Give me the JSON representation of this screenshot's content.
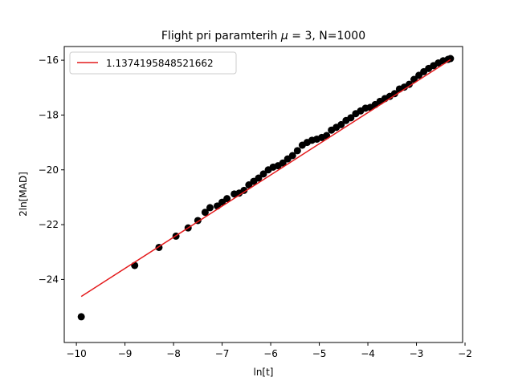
{
  "chart_data": {
    "type": "scatter",
    "title": "Flight pri paramterih μ = 3, N=1000",
    "title_prefix": "Flight pri paramterih ",
    "title_mu": "μ",
    "title_suffix": " = 3, N=1000",
    "xlabel": "ln[t]",
    "ylabel": "2ln[MAD]",
    "xlim": [
      -10.25,
      -2.05
    ],
    "ylim": [
      -26.3,
      -15.5
    ],
    "xticks": [
      -10,
      -9,
      -8,
      -7,
      -6,
      -5,
      -4,
      -3,
      -2
    ],
    "yticks": [
      -24,
      -22,
      -20,
      -18,
      -16
    ],
    "grid": false,
    "legend": {
      "placement": "top-left",
      "label": "1.1374195848521662"
    },
    "fit_line": {
      "color": "#e41a1c",
      "x": [
        -9.9,
        -2.3
      ],
      "y": [
        -24.62,
        -15.98
      ]
    },
    "scatter_color": "#000000",
    "series": [
      {
        "values": [
          [
            -9.9,
            -25.36
          ],
          [
            -8.8,
            -23.49
          ],
          [
            -8.3,
            -22.83
          ],
          [
            -7.95,
            -22.42
          ],
          [
            -7.7,
            -22.12
          ],
          [
            -7.5,
            -21.85
          ],
          [
            -7.35,
            -21.55
          ],
          [
            -7.25,
            -21.38
          ],
          [
            -7.1,
            -21.32
          ],
          [
            -7.0,
            -21.18
          ],
          [
            -6.9,
            -21.05
          ],
          [
            -6.75,
            -20.88
          ],
          [
            -6.65,
            -20.85
          ],
          [
            -6.55,
            -20.75
          ],
          [
            -6.45,
            -20.55
          ],
          [
            -6.35,
            -20.42
          ],
          [
            -6.25,
            -20.3
          ],
          [
            -6.15,
            -20.15
          ],
          [
            -6.05,
            -20.0
          ],
          [
            -5.95,
            -19.9
          ],
          [
            -5.85,
            -19.85
          ],
          [
            -5.75,
            -19.75
          ],
          [
            -5.65,
            -19.6
          ],
          [
            -5.55,
            -19.48
          ],
          [
            -5.45,
            -19.3
          ],
          [
            -5.35,
            -19.1
          ],
          [
            -5.25,
            -19.0
          ],
          [
            -5.15,
            -18.92
          ],
          [
            -5.05,
            -18.88
          ],
          [
            -4.95,
            -18.82
          ],
          [
            -4.85,
            -18.75
          ],
          [
            -4.75,
            -18.55
          ],
          [
            -4.65,
            -18.45
          ],
          [
            -4.55,
            -18.35
          ],
          [
            -4.45,
            -18.2
          ],
          [
            -4.35,
            -18.1
          ],
          [
            -4.25,
            -17.95
          ],
          [
            -4.15,
            -17.85
          ],
          [
            -4.05,
            -17.75
          ],
          [
            -3.95,
            -17.72
          ],
          [
            -3.85,
            -17.62
          ],
          [
            -3.75,
            -17.5
          ],
          [
            -3.65,
            -17.4
          ],
          [
            -3.55,
            -17.32
          ],
          [
            -3.45,
            -17.22
          ],
          [
            -3.35,
            -17.05
          ],
          [
            -3.25,
            -16.98
          ],
          [
            -3.15,
            -16.88
          ],
          [
            -3.05,
            -16.7
          ],
          [
            -2.95,
            -16.55
          ],
          [
            -2.85,
            -16.42
          ],
          [
            -2.75,
            -16.3
          ],
          [
            -2.65,
            -16.2
          ],
          [
            -2.55,
            -16.1
          ],
          [
            -2.45,
            -16.02
          ],
          [
            -2.35,
            -15.97
          ],
          [
            -2.3,
            -15.94
          ]
        ]
      }
    ]
  }
}
